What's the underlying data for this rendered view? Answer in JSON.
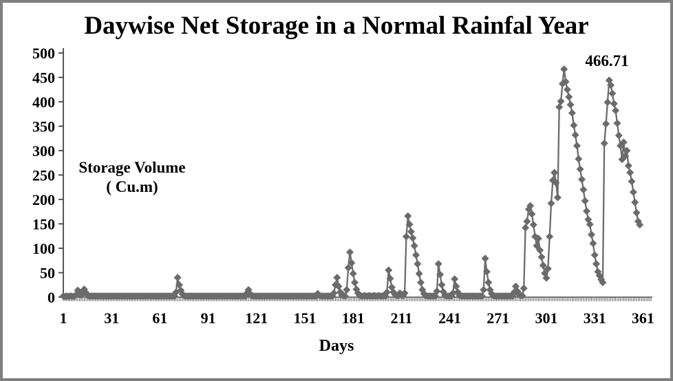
{
  "frame": {
    "border_color": "#7f7f7f",
    "background": "#ffffff"
  },
  "chart_data": {
    "type": "line",
    "title": "Daywise Net Storage in a Normal Rainfal Year",
    "xlabel": "Days",
    "ylabel_lines": [
      "Storage Volume",
      "( Cu.m)"
    ],
    "annotation": "466.71",
    "marker": "diamond",
    "grid": false,
    "legend": false,
    "series_color": "#6b6b6b",
    "axis_color": "#3a3a3a",
    "tick_comb_color": "#5a5a5a",
    "text_color": "#000000",
    "ylim": [
      0,
      500
    ],
    "yticks": [
      0,
      50,
      100,
      150,
      200,
      250,
      300,
      350,
      400,
      450,
      500
    ],
    "xticks": [
      1,
      31,
      61,
      91,
      121,
      151,
      181,
      211,
      241,
      271,
      301,
      331,
      361
    ],
    "x_axis_days": 366,
    "peak": {
      "day": 312,
      "value": 466.71
    },
    "series": [
      {
        "x_start_day": 1,
        "values": [
          2,
          1,
          2,
          1,
          2,
          2,
          1,
          2,
          5,
          14,
          8,
          4,
          10,
          16,
          9,
          4,
          2,
          2,
          2,
          2,
          2,
          2,
          2,
          2,
          2,
          2,
          2,
          2,
          2,
          2,
          2,
          2,
          2,
          2,
          2,
          2,
          2,
          2,
          2,
          2,
          2,
          2,
          2,
          2,
          2,
          2,
          2,
          2,
          2,
          2,
          2,
          2,
          2,
          2,
          2,
          2,
          2,
          2,
          2,
          2,
          2,
          2,
          2,
          2,
          2,
          2,
          2,
          2,
          2,
          2,
          10,
          40,
          25,
          14,
          6,
          3,
          2,
          2,
          2,
          2,
          2,
          2,
          2,
          2,
          2,
          2,
          2,
          2,
          2,
          2,
          2,
          2,
          2,
          2,
          2,
          2,
          2,
          2,
          2,
          2,
          2,
          2,
          2,
          2,
          2,
          2,
          2,
          2,
          2,
          2,
          2,
          2,
          2,
          2,
          8,
          15,
          7,
          3,
          2,
          2,
          2,
          2,
          2,
          2,
          2,
          2,
          2,
          2,
          2,
          2,
          2,
          2,
          2,
          2,
          2,
          2,
          2,
          2,
          2,
          2,
          2,
          2,
          2,
          2,
          2,
          2,
          2,
          2,
          2,
          2,
          2,
          2,
          2,
          2,
          2,
          2,
          2,
          2,
          7,
          4,
          2,
          2,
          2,
          2,
          2,
          2,
          2,
          2,
          8,
          25,
          40,
          22,
          10,
          4,
          3,
          2,
          15,
          60,
          92,
          70,
          48,
          30,
          16,
          8,
          4,
          2,
          2,
          3,
          2,
          2,
          3,
          2,
          2,
          3,
          2,
          2,
          3,
          2,
          2,
          3,
          2,
          10,
          55,
          38,
          20,
          10,
          5,
          3,
          3,
          8,
          4,
          3,
          8,
          124,
          166,
          149,
          134,
          121,
          105,
          86,
          68,
          48,
          30,
          15,
          7,
          3,
          2,
          2,
          2,
          2,
          2,
          2,
          12,
          68,
          46,
          25,
          11,
          4,
          2,
          2,
          2,
          2,
          8,
          37,
          22,
          10,
          4,
          2,
          2,
          2,
          2,
          2,
          2,
          2,
          2,
          2,
          2,
          2,
          2,
          2,
          2,
          15,
          79,
          52,
          30,
          15,
          7,
          3,
          2,
          2,
          2,
          2,
          2,
          2,
          2,
          2,
          2,
          2,
          2,
          2,
          10,
          22,
          12,
          5,
          3,
          3,
          18,
          142,
          155,
          180,
          187,
          170,
          148,
          124,
          105,
          120,
          96,
          82,
          65,
          49,
          39,
          58,
          124,
          192,
          239,
          255,
          234,
          204,
          389,
          401,
          437,
          466.71,
          441,
          425,
          410,
          394,
          377,
          352,
          332,
          310,
          283,
          262,
          241,
          220,
          197,
          176,
          159,
          149,
          128,
          110,
          86,
          68,
          52,
          44,
          36,
          30,
          315,
          355,
          399,
          444,
          434,
          417,
          396,
          382,
          356,
          331,
          310,
          282,
          317,
          289,
          300,
          269,
          255,
          237,
          215,
          194,
          173,
          155,
          148
        ]
      }
    ]
  }
}
